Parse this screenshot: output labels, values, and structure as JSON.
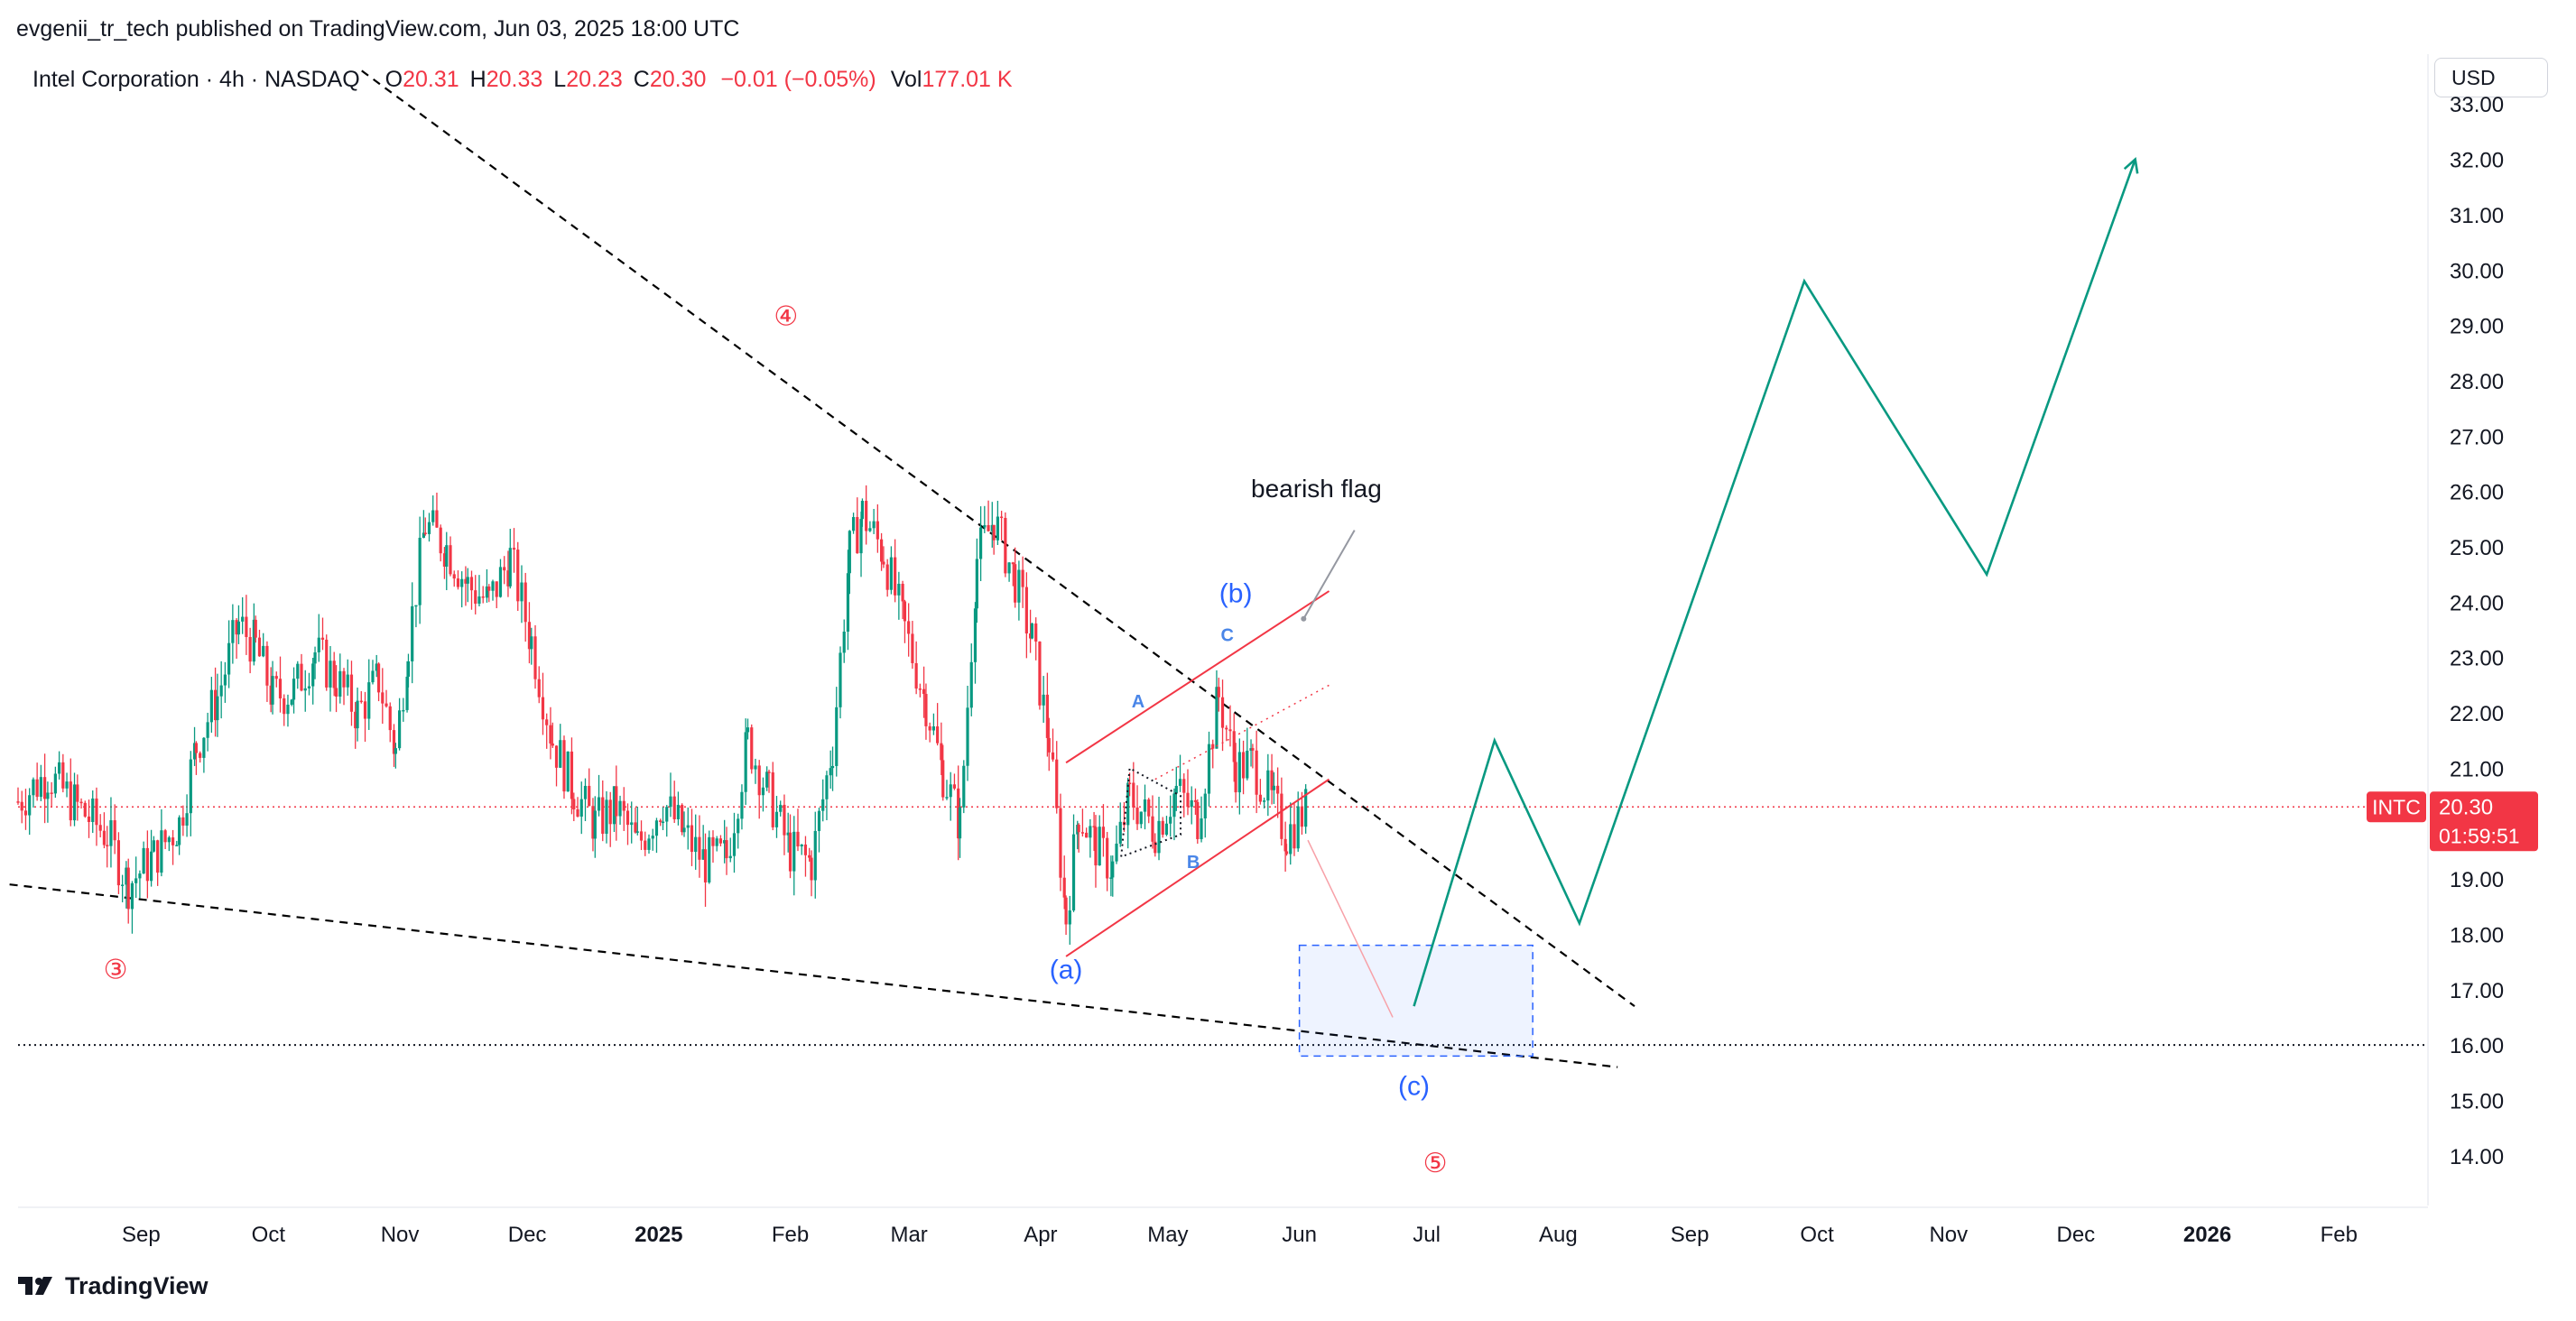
{
  "header": {
    "published": "evgenii_tr_tech published on TradingView.com, Jun 03, 2025 18:00 UTC"
  },
  "legend": {
    "symbol": "Intel Corporation · 4h · NASDAQ",
    "open_label": "O",
    "open": "20.31",
    "high_label": "H",
    "high": "20.33",
    "low_label": "L",
    "low": "20.23",
    "close_label": "C",
    "close": "20.30",
    "change": "−0.01 (−0.05%)",
    "vol_label": "Vol",
    "vol": "177.01 K"
  },
  "currency": "USD",
  "price_tag": {
    "ticker": "INTC",
    "price": "20.30",
    "countdown": "01:59:51",
    "color": "#f23645"
  },
  "brand": "TradingView",
  "chart_data": {
    "type": "line",
    "y_ticks": [
      "14.00",
      "15.00",
      "16.00",
      "17.00",
      "18.00",
      "19.00",
      "20.00",
      "21.00",
      "22.00",
      "23.00",
      "24.00",
      "25.00",
      "26.00",
      "27.00",
      "28.00",
      "29.00",
      "30.00",
      "31.00",
      "32.00",
      "33.00"
    ],
    "ylim": [
      13.1,
      33.9
    ],
    "x_ticks": [
      {
        "label": "Sep",
        "date": "2024-09-01"
      },
      {
        "label": "Oct",
        "date": "2024-10-01"
      },
      {
        "label": "Nov",
        "date": "2024-11-01"
      },
      {
        "label": "Dec",
        "date": "2024-12-01"
      },
      {
        "label": "2025",
        "date": "2025-01-01",
        "bold": true
      },
      {
        "label": "Feb",
        "date": "2025-02-01"
      },
      {
        "label": "Mar",
        "date": "2025-03-01"
      },
      {
        "label": "Apr",
        "date": "2025-04-01"
      },
      {
        "label": "May",
        "date": "2025-05-01"
      },
      {
        "label": "Jun",
        "date": "2025-06-01"
      },
      {
        "label": "Jul",
        "date": "2025-07-01"
      },
      {
        "label": "Aug",
        "date": "2025-08-01"
      },
      {
        "label": "Sep",
        "date": "2025-09-01"
      },
      {
        "label": "Oct",
        "date": "2025-10-01"
      },
      {
        "label": "Nov",
        "date": "2025-11-01"
      },
      {
        "label": "Dec",
        "date": "2025-12-01"
      },
      {
        "label": "2026",
        "date": "2026-01-01",
        "bold": true
      },
      {
        "label": "Feb",
        "date": "2026-02-01"
      }
    ],
    "xlim": [
      "2024-08-03",
      "2026-02-22"
    ],
    "price_path": [
      [
        "2024-08-03",
        20.4
      ],
      [
        "2024-08-10",
        20.9
      ],
      [
        "2024-08-17",
        20.3
      ],
      [
        "2024-08-24",
        19.8
      ],
      [
        "2024-08-29",
        18.9
      ],
      [
        "2024-09-04",
        19.4
      ],
      [
        "2024-09-10",
        20.0
      ],
      [
        "2024-09-14",
        21.4
      ],
      [
        "2024-09-19",
        22.3
      ],
      [
        "2024-09-24",
        23.6
      ],
      [
        "2024-09-28",
        23.2
      ],
      [
        "2024-10-02",
        22.3
      ],
      [
        "2024-10-07",
        22.4
      ],
      [
        "2024-10-12",
        23.1
      ],
      [
        "2024-10-17",
        22.6
      ],
      [
        "2024-10-22",
        22.0
      ],
      [
        "2024-10-27",
        22.6
      ],
      [
        "2024-10-31",
        21.3
      ],
      [
        "2024-11-03",
        23.3
      ],
      [
        "2024-11-07",
        25.4
      ],
      [
        "2024-11-12",
        25.0
      ],
      [
        "2024-11-17",
        24.3
      ],
      [
        "2024-11-22",
        24.0
      ],
      [
        "2024-11-27",
        24.8
      ],
      [
        "2024-12-02",
        23.3
      ],
      [
        "2024-12-07",
        21.5
      ],
      [
        "2024-12-12",
        20.6
      ],
      [
        "2024-12-17",
        20.0
      ],
      [
        "2024-12-22",
        20.3
      ],
      [
        "2024-12-27",
        19.6
      ],
      [
        "2025-01-02",
        20.4
      ],
      [
        "2025-01-07",
        19.8
      ],
      [
        "2025-01-12",
        19.3
      ],
      [
        "2025-01-17",
        19.4
      ],
      [
        "2025-01-22",
        21.5
      ],
      [
        "2025-01-27",
        20.5
      ],
      [
        "2025-02-01",
        19.5
      ],
      [
        "2025-02-06",
        19.3
      ],
      [
        "2025-02-11",
        21.4
      ],
      [
        "2025-02-15",
        24.9
      ],
      [
        "2025-02-18",
        25.6
      ],
      [
        "2025-02-23",
        24.9
      ],
      [
        "2025-02-28",
        23.5
      ],
      [
        "2025-03-05",
        22.2
      ],
      [
        "2025-03-09",
        20.9
      ],
      [
        "2025-03-13",
        20.0
      ],
      [
        "2025-03-17",
        24.8
      ],
      [
        "2025-03-21",
        25.5
      ],
      [
        "2025-03-26",
        24.4
      ],
      [
        "2025-03-30",
        23.3
      ],
      [
        "2025-04-03",
        21.5
      ],
      [
        "2025-04-07",
        18.3
      ],
      [
        "2025-04-10",
        20.2
      ],
      [
        "2025-04-14",
        19.6
      ],
      [
        "2025-04-18",
        19.2
      ],
      [
        "2025-04-22",
        20.5
      ],
      [
        "2025-04-28",
        19.9
      ],
      [
        "2025-05-03",
        20.6
      ],
      [
        "2025-05-08",
        20.1
      ],
      [
        "2025-05-13",
        22.3
      ],
      [
        "2025-05-17",
        21.0
      ],
      [
        "2025-05-21",
        21.1
      ],
      [
        "2025-05-26",
        20.3
      ],
      [
        "2025-05-29",
        19.8
      ],
      [
        "2025-06-03",
        20.3
      ]
    ],
    "projection": [
      [
        "2025-06-28",
        16.7
      ],
      [
        "2025-07-17",
        21.5
      ],
      [
        "2025-08-06",
        18.2
      ],
      [
        "2025-09-28",
        29.8
      ],
      [
        "2025-11-10",
        24.5
      ],
      [
        "2025-12-15",
        32.0
      ]
    ],
    "correction_line": [
      [
        "2025-06-03",
        19.7
      ],
      [
        "2025-06-23",
        16.5
      ]
    ],
    "trendline_upper": [
      [
        "2024-10-23",
        33.6
      ],
      [
        "2025-08-19",
        16.7
      ]
    ],
    "trendline_lower": [
      [
        "2024-08-01",
        18.9
      ],
      [
        "2025-08-15",
        15.6
      ]
    ],
    "support_line": 16.0,
    "last_price": 20.3,
    "channel_upper": [
      [
        "2025-04-07",
        21.1
      ],
      [
        "2025-06-08",
        24.2
      ]
    ],
    "channel_lower": [
      [
        "2025-04-07",
        17.6
      ],
      [
        "2025-06-08",
        20.8
      ]
    ],
    "channel_mid": [
      [
        "2025-04-28",
        20.8
      ],
      [
        "2025-06-08",
        22.5
      ]
    ],
    "triangle": [
      [
        "2025-04-20",
        19.4
      ],
      [
        "2025-04-22",
        21.0
      ],
      [
        "2025-05-04",
        20.5
      ],
      [
        "2025-05-04",
        19.8
      ]
    ],
    "target_box": {
      "x0": "2025-06-01",
      "x1": "2025-07-26",
      "y0": 15.8,
      "y1": 17.8
    },
    "labels": [
      {
        "text": "④",
        "date": "2025-01-31",
        "price": 29.0,
        "color": "#f23645"
      },
      {
        "text": "③",
        "date": "2024-08-26",
        "price": 17.2,
        "color": "#f23645"
      },
      {
        "text": "⑤",
        "date": "2025-07-03",
        "price": 13.7,
        "color": "#f23645"
      },
      {
        "text": "(a)",
        "date": "2025-04-07",
        "price": 17.2,
        "color": "#2962ff"
      },
      {
        "text": "(b)",
        "date": "2025-05-17",
        "price": 24.0,
        "color": "#2962ff"
      },
      {
        "text": "(c)",
        "date": "2025-06-28",
        "price": 15.1,
        "color": "#2962ff"
      },
      {
        "text": "A",
        "date": "2025-04-24",
        "price": 22.1,
        "color": "#4a86e8"
      },
      {
        "text": "B",
        "date": "2025-05-07",
        "price": 19.2,
        "color": "#4a86e8"
      },
      {
        "text": "C",
        "date": "2025-05-15",
        "price": 23.3,
        "color": "#4a86e8"
      },
      {
        "text": "bearish flag",
        "date": "2025-06-05",
        "price": 25.9,
        "color": "#131722"
      }
    ],
    "pointer": [
      [
        "2025-06-14",
        25.3
      ],
      [
        "2025-06-02",
        23.7
      ]
    ],
    "colors": {
      "up": "#089981",
      "down": "#f23645",
      "projection": "#089981",
      "trend": "#000000",
      "channel": "#f23645",
      "box": "#2962ff"
    }
  }
}
